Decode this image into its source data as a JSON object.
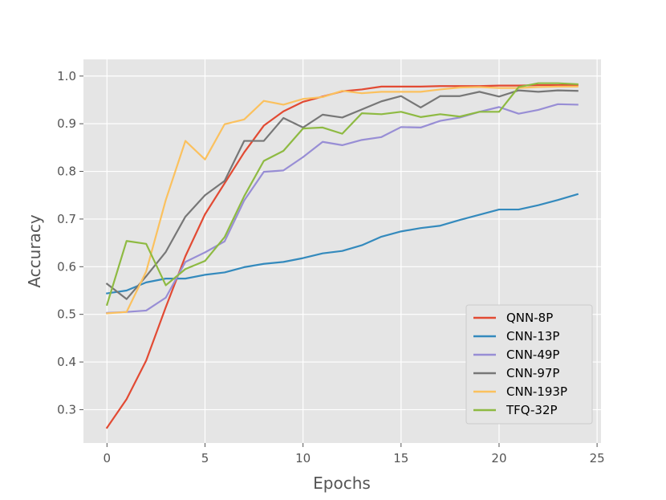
{
  "chart_data": {
    "type": "line",
    "title": "",
    "xlabel": "Epochs",
    "ylabel": "Accuracy",
    "xlim": [
      -1.2,
      25.2
    ],
    "ylim": [
      0.23,
      1.035
    ],
    "xticks": [
      0,
      5,
      10,
      15,
      20,
      25
    ],
    "yticks": [
      0.3,
      0.4,
      0.5,
      0.6,
      0.7,
      0.8,
      0.9,
      1.0
    ],
    "ytick_labels": [
      "0.3",
      "0.4",
      "0.5",
      "0.6",
      "0.7",
      "0.8",
      "0.9",
      "1.0"
    ],
    "grid": true,
    "legend_position": "lower-right",
    "x": [
      0,
      1,
      2,
      3,
      4,
      5,
      6,
      7,
      8,
      9,
      10,
      11,
      12,
      13,
      14,
      15,
      16,
      17,
      18,
      19,
      20,
      21,
      22,
      23,
      24
    ],
    "series": [
      {
        "name": "QNN-8P",
        "color": "#E24A33",
        "values": [
          0.262,
          0.322,
          0.403,
          0.515,
          0.622,
          0.71,
          0.775,
          0.84,
          0.896,
          0.926,
          0.946,
          0.957,
          0.968,
          0.972,
          0.978,
          0.978,
          0.978,
          0.979,
          0.979,
          0.979,
          0.98,
          0.98,
          0.981,
          0.981,
          0.981
        ]
      },
      {
        "name": "CNN-13P",
        "color": "#348ABD",
        "values": [
          0.544,
          0.55,
          0.567,
          0.575,
          0.575,
          0.583,
          0.588,
          0.599,
          0.606,
          0.61,
          0.618,
          0.628,
          0.633,
          0.645,
          0.663,
          0.674,
          0.681,
          0.686,
          0.698,
          0.709,
          0.72,
          0.72,
          0.729,
          0.74,
          0.752
        ]
      },
      {
        "name": "CNN-49P",
        "color": "#988ED5",
        "values": [
          0.503,
          0.505,
          0.508,
          0.535,
          0.61,
          0.63,
          0.653,
          0.739,
          0.799,
          0.802,
          0.83,
          0.862,
          0.855,
          0.866,
          0.872,
          0.893,
          0.892,
          0.906,
          0.913,
          0.925,
          0.935,
          0.921,
          0.929,
          0.941,
          0.94
        ]
      },
      {
        "name": "CNN-97P",
        "color": "#777777",
        "values": [
          0.564,
          0.532,
          0.58,
          0.631,
          0.705,
          0.75,
          0.78,
          0.864,
          0.864,
          0.912,
          0.892,
          0.919,
          0.913,
          0.93,
          0.947,
          0.958,
          0.934,
          0.958,
          0.958,
          0.967,
          0.957,
          0.97,
          0.967,
          0.97,
          0.969
        ]
      },
      {
        "name": "CNN-193P",
        "color": "#FBC15E",
        "values": [
          0.502,
          0.505,
          0.59,
          0.74,
          0.864,
          0.825,
          0.899,
          0.909,
          0.948,
          0.94,
          0.952,
          0.956,
          0.969,
          0.964,
          0.967,
          0.967,
          0.967,
          0.972,
          0.976,
          0.977,
          0.975,
          0.975,
          0.977,
          0.978,
          0.978
        ]
      },
      {
        "name": "TFQ-32P",
        "color": "#8EBA42",
        "values": [
          0.52,
          0.654,
          0.648,
          0.561,
          0.595,
          0.612,
          0.662,
          0.748,
          0.822,
          0.843,
          0.89,
          0.892,
          0.879,
          0.922,
          0.92,
          0.925,
          0.914,
          0.92,
          0.915,
          0.925,
          0.925,
          0.977,
          0.985,
          0.985,
          0.983
        ]
      }
    ]
  }
}
